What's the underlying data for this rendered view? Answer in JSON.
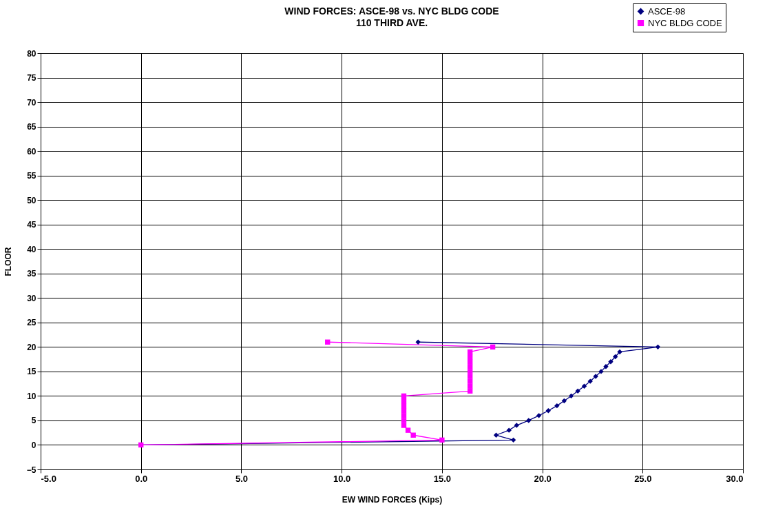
{
  "chart_data": {
    "type": "line",
    "title": "WIND FORCES:  ASCE-98 vs. NYC BLDG CODE",
    "subtitle": "110 THIRD AVE.",
    "xlabel": "EW WIND FORCES (Kips)",
    "ylabel": "FLOOR",
    "xlim": [
      -5,
      30
    ],
    "xticks": [
      {
        "value": -5,
        "label": "-5.0"
      },
      {
        "value": 0,
        "label": "0.0"
      },
      {
        "value": 5,
        "label": "5.0"
      },
      {
        "value": 10,
        "label": "10.0"
      },
      {
        "value": 15,
        "label": "15.0"
      },
      {
        "value": 20,
        "label": "20.0"
      },
      {
        "value": 25,
        "label": "25.0"
      },
      {
        "value": 30,
        "label": "30.0"
      }
    ],
    "ylim": [
      -5,
      80
    ],
    "yticks": [
      -5,
      0,
      5,
      10,
      15,
      20,
      25,
      30,
      35,
      40,
      45,
      50,
      55,
      60,
      65,
      70,
      75,
      80
    ],
    "grid": true,
    "legend": "top right",
    "series": [
      {
        "name": "ASCE-98",
        "color": "#000080",
        "marker": "diamond",
        "x": [
          0,
          18.56,
          17.7,
          18.34,
          18.72,
          19.32,
          19.83,
          20.3,
          20.73,
          21.09,
          21.44,
          21.77,
          22.09,
          22.39,
          22.66,
          22.93,
          23.17,
          23.41,
          23.64,
          23.86,
          25.76,
          13.81
        ],
        "values": [
          0,
          1,
          2,
          3,
          4,
          5,
          6,
          7,
          8,
          9,
          10,
          11,
          12,
          13,
          14,
          15,
          16,
          17,
          18,
          19,
          20,
          21
        ]
      },
      {
        "name": "NYC BLDG CODE",
        "color": "#ff00ff",
        "marker": "square",
        "x": [
          0,
          15.0,
          13.57,
          13.31,
          13.1,
          13.1,
          13.1,
          13.1,
          13.1,
          13.1,
          13.1,
          16.4,
          16.4,
          16.4,
          16.4,
          16.4,
          16.4,
          16.4,
          16.4,
          16.4,
          17.53,
          9.3
        ],
        "values": [
          0,
          1,
          2,
          3,
          4,
          5,
          6,
          7,
          8,
          9,
          10,
          11,
          12,
          13,
          14,
          15,
          16,
          17,
          18,
          19,
          20,
          21
        ]
      }
    ]
  }
}
